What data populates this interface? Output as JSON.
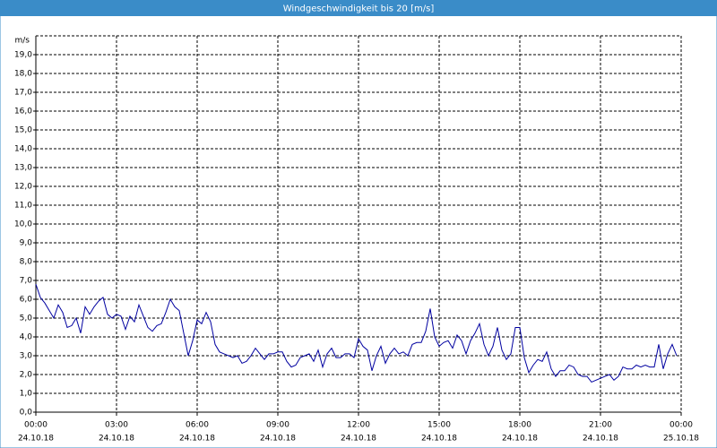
{
  "chart_data": {
    "type": "line",
    "title": "Windgeschwindigkeit bis 20 [m/s]",
    "y_unit": "m/s",
    "x": [
      0,
      10,
      20,
      30,
      40,
      50,
      60,
      70,
      80,
      90,
      100,
      110,
      120,
      130,
      140,
      150,
      160,
      170,
      180,
      190,
      200,
      210,
      220,
      230,
      240,
      250,
      260,
      270,
      280,
      290,
      300,
      310,
      320,
      330,
      340,
      350,
      360,
      370,
      380,
      390,
      400,
      410,
      420,
      430,
      440,
      450,
      460,
      470,
      480,
      490,
      500,
      510,
      520,
      530,
      540,
      550,
      560,
      570,
      580,
      590,
      600,
      610,
      620,
      630,
      640,
      650,
      660,
      670,
      680,
      690,
      700,
      710,
      720,
      730,
      740,
      750,
      760,
      770,
      780,
      790,
      800,
      810,
      820,
      830,
      840,
      850,
      860,
      870,
      880,
      890,
      900,
      910,
      920,
      930,
      940,
      950,
      960,
      970,
      980,
      990,
      1000,
      1010,
      1020,
      1030,
      1040,
      1050,
      1060,
      1070,
      1080,
      1090,
      1100,
      1110,
      1120,
      1130,
      1140,
      1150,
      1160,
      1170,
      1180,
      1190,
      1200,
      1210,
      1220,
      1230,
      1240,
      1250,
      1260,
      1270,
      1280,
      1290,
      1300,
      1310,
      1320,
      1330,
      1340,
      1350,
      1360,
      1370,
      1380,
      1390,
      1400,
      1410,
      1420,
      1430
    ],
    "series": [
      {
        "name": "Windgeschwindigkeit",
        "color": "#0000a0",
        "values": [
          6.8,
          6.1,
          5.8,
          5.4,
          5.0,
          5.7,
          5.3,
          4.5,
          4.6,
          5.0,
          4.2,
          5.6,
          5.2,
          5.6,
          5.9,
          6.1,
          5.2,
          5.0,
          5.2,
          5.1,
          4.4,
          5.1,
          4.8,
          5.7,
          5.1,
          4.5,
          4.3,
          4.6,
          4.7,
          5.3,
          6.0,
          5.6,
          5.4,
          4.2,
          3.0,
          3.8,
          4.9,
          4.7,
          5.3,
          4.8,
          3.6,
          3.2,
          3.1,
          3.0,
          2.9,
          3.0,
          2.6,
          2.7,
          3.0,
          3.4,
          3.1,
          2.8,
          3.1,
          3.1,
          3.2,
          3.2,
          2.7,
          2.4,
          2.5,
          2.9,
          3.0,
          3.1,
          2.7,
          3.3,
          2.4,
          3.1,
          3.4,
          2.9,
          2.9,
          3.1,
          3.1,
          2.9,
          3.9,
          3.5,
          3.3,
          2.2,
          3.0,
          3.5,
          2.6,
          3.1,
          3.4,
          3.1,
          3.2,
          3.0,
          3.6,
          3.7,
          3.7,
          4.3,
          5.5,
          4.0,
          3.5,
          3.7,
          3.8,
          3.4,
          4.1,
          3.8,
          3.1,
          3.8,
          4.2,
          4.7,
          3.6,
          3.0,
          3.5,
          4.5,
          3.3,
          2.8,
          3.1,
          4.5,
          4.5,
          2.9,
          2.1,
          2.5,
          2.8,
          2.7,
          3.2,
          2.3,
          1.9,
          2.2,
          2.2,
          2.5,
          2.4,
          2.0,
          1.9,
          1.9,
          1.6,
          1.7,
          1.8,
          1.9,
          2.0,
          1.7,
          1.9,
          2.4,
          2.3,
          2.3,
          2.5,
          2.4,
          2.5,
          2.4,
          2.4,
          3.6,
          2.3,
          3.1,
          3.6,
          3.0
        ]
      }
    ],
    "xlim": [
      0,
      1440
    ],
    "xticks": [
      {
        "value": 0,
        "label": "00:00"
      },
      {
        "value": 180,
        "label": "03:00"
      },
      {
        "value": 360,
        "label": "06:00"
      },
      {
        "value": 540,
        "label": "09:00"
      },
      {
        "value": 720,
        "label": "12:00"
      },
      {
        "value": 900,
        "label": "15:00"
      },
      {
        "value": 1080,
        "label": "18:00"
      },
      {
        "value": 1260,
        "label": "21:00"
      },
      {
        "value": 1440,
        "label": "00:00"
      }
    ],
    "xtick_dates": [
      "24.10.18",
      "24.10.18",
      "24.10.18",
      "24.10.18",
      "24.10.18",
      "24.10.18",
      "24.10.18",
      "24.10.18",
      "25.10.18"
    ],
    "ylim": [
      0,
      20
    ],
    "yticks": [
      {
        "value": 0,
        "label": "0,0"
      },
      {
        "value": 1,
        "label": "1,0"
      },
      {
        "value": 2,
        "label": "2,0"
      },
      {
        "value": 3,
        "label": "3,0"
      },
      {
        "value": 4,
        "label": "4,0"
      },
      {
        "value": 5,
        "label": "5,0"
      },
      {
        "value": 6,
        "label": "6,0"
      },
      {
        "value": 7,
        "label": "7,0"
      },
      {
        "value": 8,
        "label": "8,0"
      },
      {
        "value": 9,
        "label": "9,0"
      },
      {
        "value": 10,
        "label": "10,0"
      },
      {
        "value": 11,
        "label": "11,0"
      },
      {
        "value": 12,
        "label": "12,0"
      },
      {
        "value": 13,
        "label": "13,0"
      },
      {
        "value": 14,
        "label": "14,0"
      },
      {
        "value": 15,
        "label": "15,0"
      },
      {
        "value": 16,
        "label": "16,0"
      },
      {
        "value": 17,
        "label": "17,0"
      },
      {
        "value": 18,
        "label": "18,0"
      },
      {
        "value": 19,
        "label": "19,0"
      }
    ],
    "grid": true
  }
}
